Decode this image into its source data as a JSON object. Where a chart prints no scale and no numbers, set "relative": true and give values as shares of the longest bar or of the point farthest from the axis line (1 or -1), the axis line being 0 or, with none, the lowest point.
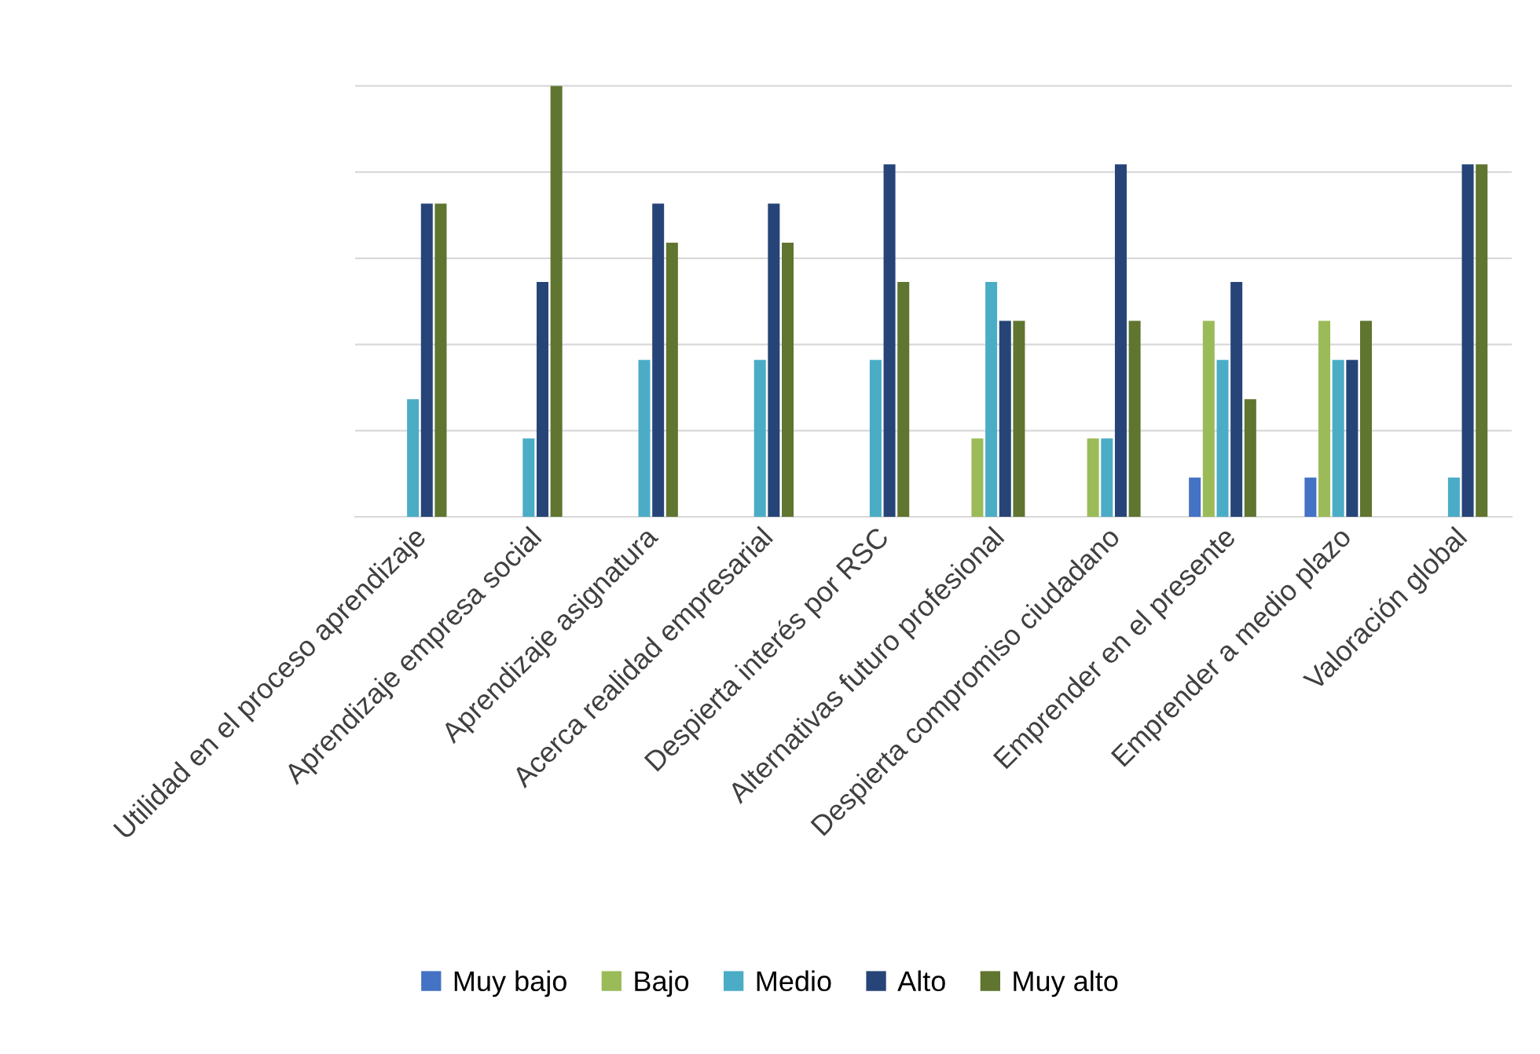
{
  "chart_data": {
    "type": "bar",
    "relative": true,
    "grid": "y",
    "legend": "bottom",
    "categories": [
      "Utilidad en el proceso aprendizaje",
      "Aprendizaje empresa social",
      "Aprendizaje asignatura",
      "Acerca realidad empresarial",
      "Despierta interés por RSC",
      "Alternativas futuro profesional",
      "Despierta compromiso ciudadano",
      "Emprender en el presente",
      "Emprender a medio plazo",
      "Valoración global"
    ],
    "series": [
      {
        "name": "Muy bajo",
        "color": "#4472c4",
        "values": [
          null,
          null,
          null,
          null,
          null,
          null,
          null,
          0.091,
          0.091,
          null
        ]
      },
      {
        "name": "Bajo",
        "color": "#9bbb59",
        "values": [
          null,
          null,
          null,
          null,
          null,
          0.182,
          0.182,
          0.455,
          0.455,
          null
        ]
      },
      {
        "name": "Medio",
        "color": "#4bacc6",
        "values": [
          0.273,
          0.182,
          0.364,
          0.364,
          0.364,
          0.545,
          0.182,
          0.364,
          0.364,
          0.091
        ]
      },
      {
        "name": "Alto",
        "color": "#264478",
        "values": [
          0.727,
          0.545,
          0.727,
          0.727,
          0.818,
          0.455,
          0.818,
          0.545,
          0.364,
          0.818
        ]
      },
      {
        "name": "Muy alto",
        "color": "#5f7530",
        "values": [
          0.727,
          1,
          0.636,
          0.636,
          0.545,
          0.455,
          0.455,
          0.273,
          0.455,
          0.818
        ]
      }
    ]
  }
}
